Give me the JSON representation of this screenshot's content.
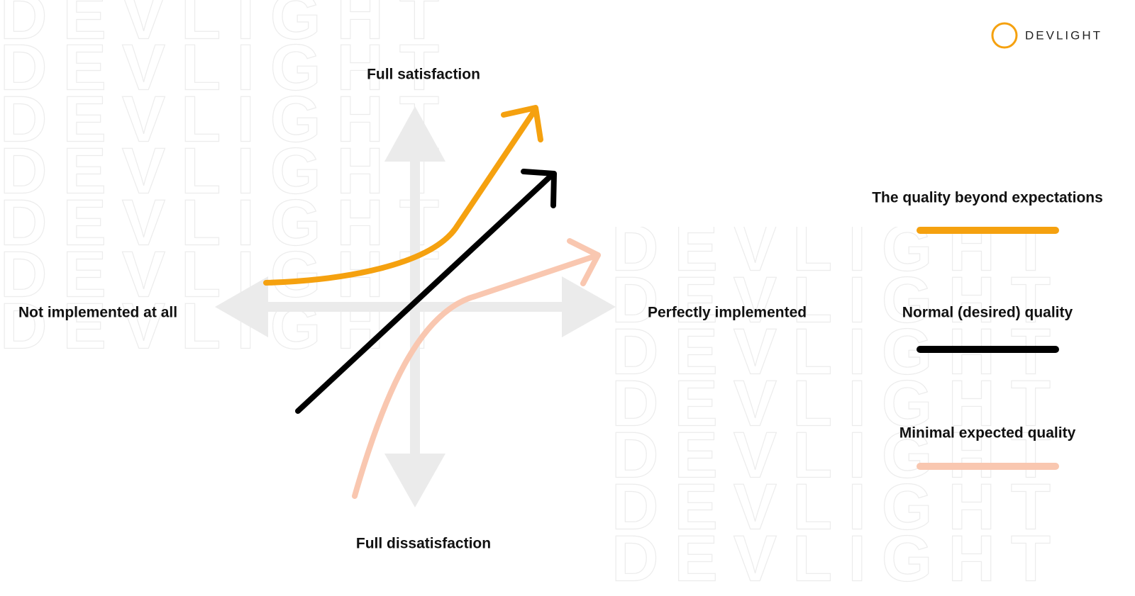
{
  "watermark": "DEVLIGHT",
  "logo": {
    "text": "DEVLIGHT"
  },
  "axes": {
    "top": "Full satisfaction",
    "bottom": "Full dissatisfaction",
    "left": "Not implemented at all",
    "right": "Perfectly implemented"
  },
  "legend": [
    {
      "label": "The quality beyond expectations"
    },
    {
      "label": "Normal (desired) quality"
    },
    {
      "label": "Minimal expected quality"
    }
  ]
}
